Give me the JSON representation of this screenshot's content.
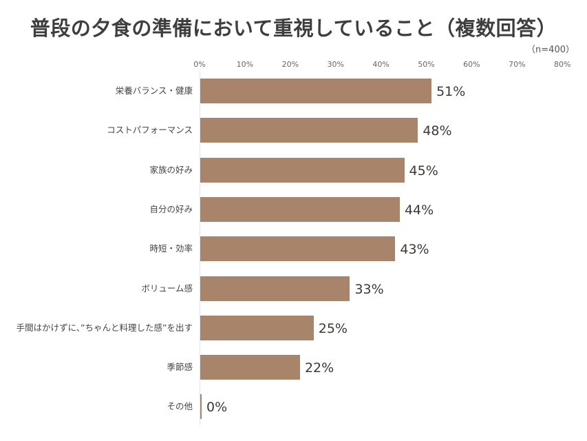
{
  "chart_data": {
    "type": "bar",
    "orientation": "horizontal",
    "title": "普段の夕食の準備において重視していること（複数回答）",
    "subtitle": "（n=400）",
    "xlabel": "",
    "ylabel": "",
    "xlim": [
      0,
      80
    ],
    "x_ticks": [
      "0%",
      "10%",
      "20%",
      "30%",
      "40%",
      "50%",
      "60%",
      "70%",
      "80%"
    ],
    "grid": false,
    "legend": null,
    "bar_color": "#a7846a",
    "categories": [
      "栄養バランス・健康",
      "コストパフォーマンス",
      "家族の好み",
      "自分の好み",
      "時短・効率",
      "ボリューム感",
      "手間はかけずに、”ちゃんと料理した感”を出す",
      "季節感",
      "その他"
    ],
    "values": [
      51,
      48,
      45,
      44,
      43,
      33,
      25,
      22,
      0
    ],
    "value_labels": [
      "51%",
      "48%",
      "45%",
      "44%",
      "43%",
      "33%",
      "25%",
      "22%",
      "0%"
    ],
    "unit": "%"
  },
  "header": {
    "title": "普段の夕食の準備において重視していること（複数回答）",
    "sample_size": "（n=400）"
  }
}
